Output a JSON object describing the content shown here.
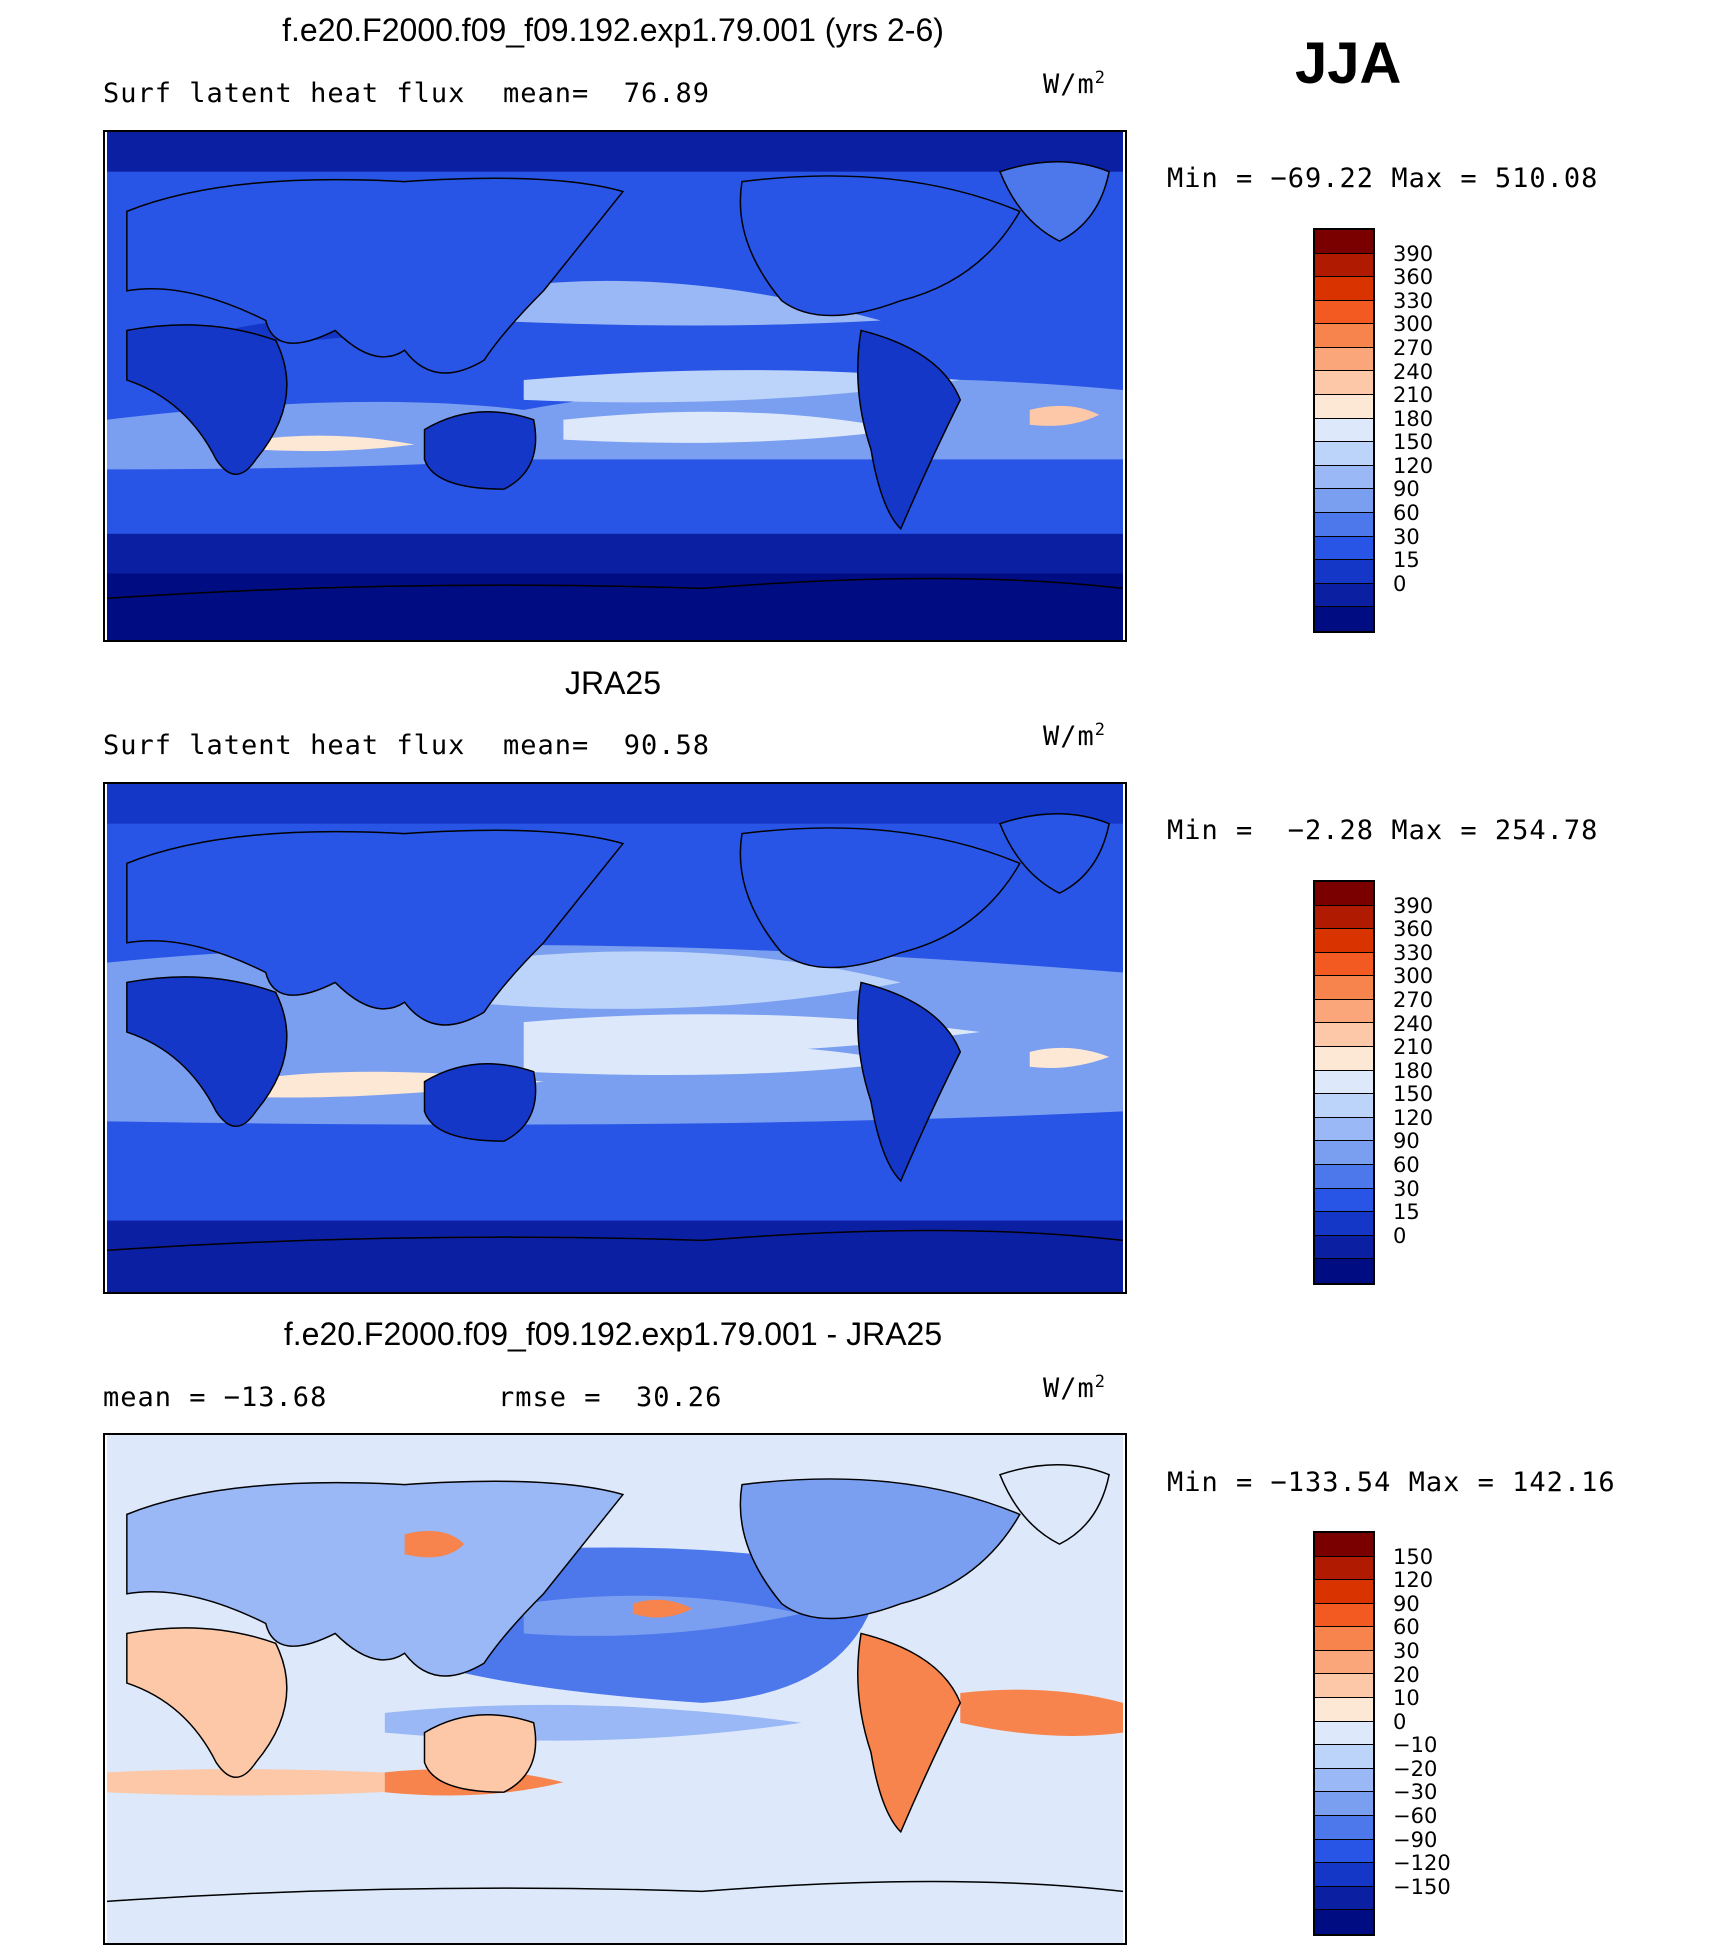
{
  "season": "JJA",
  "units": "W/m",
  "units_sup": "2",
  "panels": [
    {
      "title": "f.e20.F2000.f09_f09.192.exp1.79.001 (yrs 2-6)",
      "label_left": "Surf latent heat flux",
      "label_mid": "mean=  76.89",
      "minmax": "Min = −69.22 Max = 510.08",
      "colors": [
        "#7a0000",
        "#b01a00",
        "#d93300",
        "#f25a22",
        "#f7834d",
        "#faa57a",
        "#fcc8a8",
        "#fde8d5",
        "#dde9fb",
        "#bcd3fa",
        "#9ab8f5",
        "#7b9ff0",
        "#4d78ec",
        "#2855e6",
        "#1437c8",
        "#0b1fa3",
        "#000d82"
      ],
      "ticks": [
        "390",
        "360",
        "330",
        "300",
        "270",
        "240",
        "210",
        "180",
        "150",
        "120",
        "90",
        "60",
        "30",
        "15",
        "0"
      ]
    },
    {
      "title": "JRA25",
      "label_left": "Surf latent heat flux",
      "label_mid": "mean=  90.58",
      "minmax": "Min =  −2.28 Max = 254.78",
      "colors": [
        "#7a0000",
        "#b01a00",
        "#d93300",
        "#f25a22",
        "#f7834d",
        "#faa57a",
        "#fcc8a8",
        "#fde8d5",
        "#dde9fb",
        "#bcd3fa",
        "#9ab8f5",
        "#7b9ff0",
        "#4d78ec",
        "#2855e6",
        "#1437c8",
        "#0b1fa3",
        "#000d82"
      ],
      "ticks": [
        "390",
        "360",
        "330",
        "300",
        "270",
        "240",
        "210",
        "180",
        "150",
        "120",
        "90",
        "60",
        "30",
        "15",
        "0"
      ]
    },
    {
      "title": "f.e20.F2000.f09_f09.192.exp1.79.001 - JRA25",
      "label_left": "mean = −13.68",
      "label_mid": "rmse =  30.26",
      "minmax": "Min = −133.54 Max = 142.16",
      "colors": [
        "#7a0000",
        "#b01a00",
        "#d93300",
        "#f25a22",
        "#f7834d",
        "#faa57a",
        "#fcc8a8",
        "#fde8d5",
        "#dde9fb",
        "#bcd3fa",
        "#9ab8f5",
        "#7b9ff0",
        "#4d78ec",
        "#2855e6",
        "#1437c8",
        "#0b1fa3",
        "#000d82"
      ],
      "ticks": [
        "150",
        "120",
        "90",
        "60",
        "30",
        "20",
        "10",
        "0",
        "−10",
        "−20",
        "−30",
        "−60",
        "−90",
        "−120",
        "−150"
      ]
    }
  ]
}
